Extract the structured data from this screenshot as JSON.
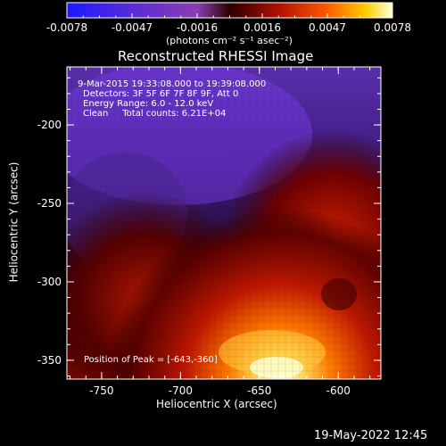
{
  "colorbar": {
    "tick_labels": [
      "-0.0078",
      "-0.0047",
      "-0.0016",
      "0.0016",
      "0.0047",
      "0.0078"
    ],
    "units_label": "(photons cm⁻² s⁻¹ asec⁻²)"
  },
  "plot": {
    "title": "Reconstructed RHESSI Image",
    "info_lines": [
      "9-Mar-2015 19:33:08.000 to 19:39:08.000",
      "Detectors: 3F 5F 6F 7F 8F 9F, Att 0",
      "Energy Range: 6.0 - 12.0 keV",
      "Clean     Total counts: 6.21E+04"
    ],
    "peak_label": "Position of Peak = [-643,-360]",
    "x_axis_label": "Heliocentric X (arcsec)",
    "y_axis_label": "Heliocentric Y (arcsec)",
    "x_tick_labels": [
      "-750",
      "-700",
      "-650",
      "-600"
    ],
    "y_tick_labels": [
      "-200",
      "-250",
      "-300",
      "-350"
    ]
  },
  "footer": {
    "timestamp": "19-May-2022 12:45"
  }
}
